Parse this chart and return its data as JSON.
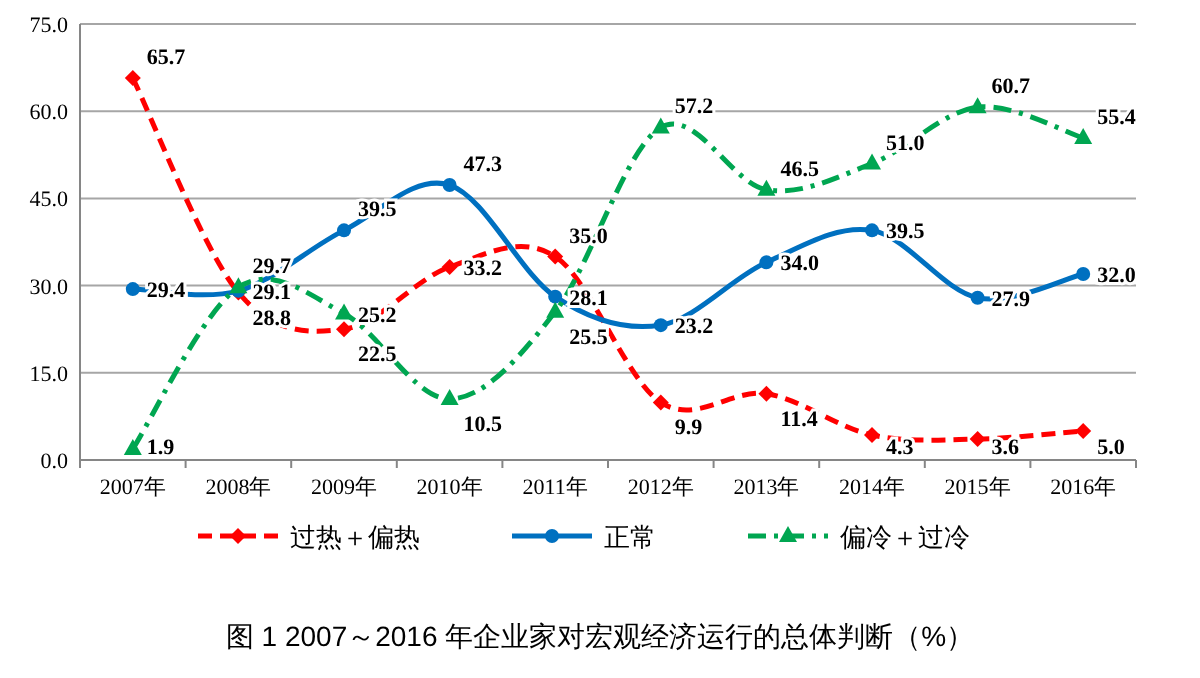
{
  "chart_data": {
    "type": "line",
    "title": "图 1   2007～2016 年企业家对宏观经济运行的总体判断（%）",
    "categories": [
      "2007年",
      "2008年",
      "2009年",
      "2010年",
      "2011年",
      "2012年",
      "2013年",
      "2014年",
      "2015年",
      "2016年"
    ],
    "series": [
      {
        "name": "过热＋偏热",
        "color": "#ff0000",
        "marker": "diamond",
        "line_style": "dashed",
        "values": [
          65.7,
          28.8,
          22.5,
          33.2,
          35.0,
          9.9,
          11.4,
          4.3,
          3.6,
          5.0
        ],
        "value_labels": [
          "65.7",
          "28.8",
          "22.5",
          "33.2",
          "35.0",
          "9.9",
          "11.4",
          "4.3",
          "3.6",
          "5.0"
        ]
      },
      {
        "name": "正常",
        "color": "#0070c0",
        "marker": "circle",
        "line_style": "solid",
        "values": [
          29.4,
          29.1,
          39.5,
          47.3,
          28.1,
          23.2,
          34.0,
          39.5,
          27.9,
          32.0
        ],
        "value_labels": [
          "29.4",
          "29.1",
          "39.5",
          "47.3",
          "28.1",
          "23.2",
          "34.0",
          "39.5",
          "27.9",
          "32.0"
        ]
      },
      {
        "name": "偏冷＋过冷",
        "color": "#00a651",
        "marker": "triangle",
        "line_style": "dashdot",
        "values": [
          1.9,
          29.7,
          25.2,
          10.5,
          25.5,
          57.2,
          46.5,
          51.0,
          60.7,
          55.4
        ],
        "value_labels": [
          "1.9",
          "29.7",
          "25.2",
          "10.5",
          "25.5",
          "57.2",
          "46.5",
          "51.0",
          "60.7",
          "55.4"
        ]
      }
    ],
    "ylim": [
      0,
      75
    ],
    "yticks": [
      {
        "value": 0,
        "label": "0.0"
      },
      {
        "value": 15,
        "label": "15.0"
      },
      {
        "value": 30,
        "label": "30.0"
      },
      {
        "value": 45,
        "label": "45.0"
      },
      {
        "value": 60,
        "label": "60.0"
      },
      {
        "value": 75,
        "label": "75.0"
      }
    ],
    "grid": "y",
    "legend": "bottom"
  }
}
